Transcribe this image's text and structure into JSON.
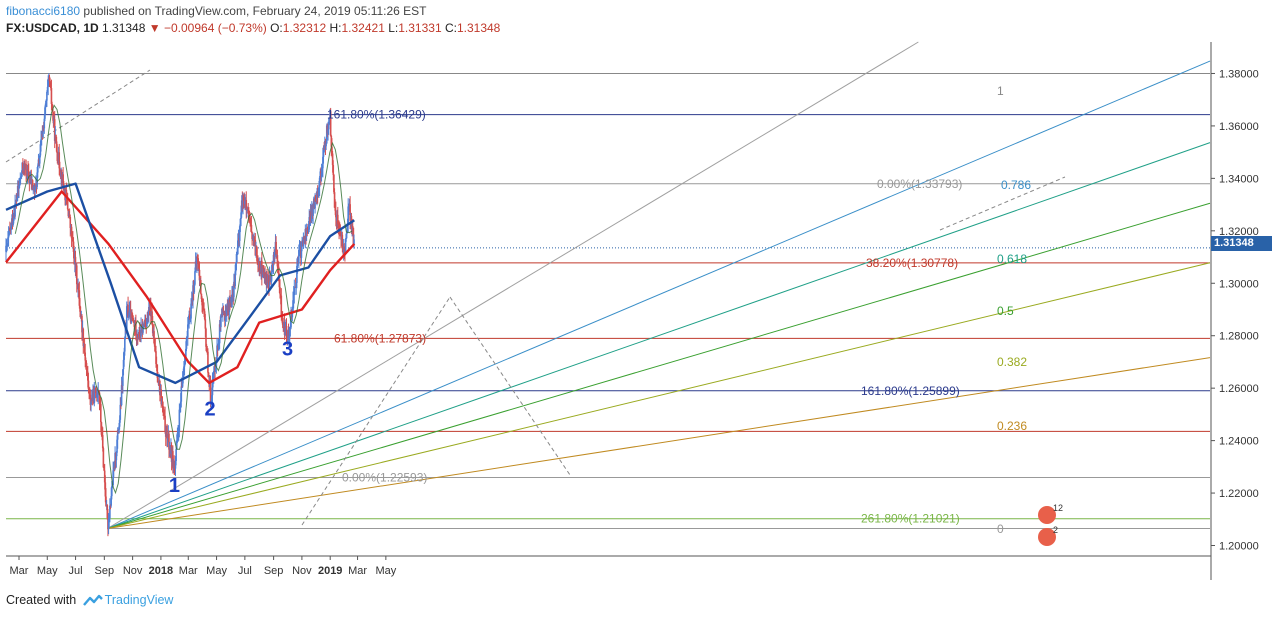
{
  "header": {
    "user": "fibonacci6180",
    "published": "published on TradingView.com, February 24, 2019 05:11:26 EST",
    "symbol": "FX:USDCAD, 1D",
    "last": "1.31348",
    "change": "−0.00964 (−0.73%)",
    "o_label": "O:",
    "o": "1.32312",
    "h_label": "H:",
    "h": "1.32421",
    "l_label": "L:",
    "l": "1.31331",
    "c_label": "C:",
    "c": "1.31348"
  },
  "footer": {
    "created_with": "Created with",
    "brand": "TradingView"
  },
  "price_tag": "1.31348",
  "colors": {
    "up": "#4f7fd6",
    "down": "#d64e4e",
    "ma200": "#e02020",
    "ma100": "#1c4fa3",
    "ma50": "#2f6e2f",
    "label_blue": "#1a3fc4",
    "price_tag_bg": "#2962a8"
  },
  "chart_data": {
    "type": "candlestick",
    "symbol": "FX:USDCAD",
    "interval": "1D",
    "y_axis": {
      "ticks": [
        1.2,
        1.22,
        1.24,
        1.26,
        1.28,
        1.3,
        1.32,
        1.34,
        1.36,
        1.38
      ],
      "range": [
        1.196,
        1.392
      ]
    },
    "x_axis": {
      "ticks": [
        "Mar",
        "May",
        "Jul",
        "Sep",
        "Nov",
        "2018",
        "Mar",
        "May",
        "Jul",
        "Sep",
        "Nov",
        "2019",
        "Mar",
        "May"
      ]
    },
    "price_path": [
      [
        "2017-02-01",
        1.312
      ],
      [
        "2017-03-10",
        1.345
      ],
      [
        "2017-04-05",
        1.335
      ],
      [
        "2017-05-05",
        1.378
      ],
      [
        "2017-05-20",
        1.352
      ],
      [
        "2017-06-15",
        1.328
      ],
      [
        "2017-07-05",
        1.3
      ],
      [
        "2017-08-01",
        1.255
      ],
      [
        "2017-08-20",
        1.26
      ],
      [
        "2017-09-08",
        1.207
      ],
      [
        "2017-10-05",
        1.25
      ],
      [
        "2017-10-20",
        1.29
      ],
      [
        "2017-11-15",
        1.28
      ],
      [
        "2017-12-10",
        1.29
      ],
      [
        "2017-12-20",
        1.272
      ],
      [
        "2018-01-10",
        1.245
      ],
      [
        "2018-01-31",
        1.229
      ],
      [
        "2018-02-20",
        1.27
      ],
      [
        "2018-03-20",
        1.31
      ],
      [
        "2018-04-05",
        1.285
      ],
      [
        "2018-04-18",
        1.256
      ],
      [
        "2018-05-10",
        1.285
      ],
      [
        "2018-06-05",
        1.295
      ],
      [
        "2018-06-27",
        1.334
      ],
      [
        "2018-07-20",
        1.315
      ],
      [
        "2018-08-10",
        1.303
      ],
      [
        "2018-08-25",
        1.3
      ],
      [
        "2018-09-05",
        1.315
      ],
      [
        "2018-09-20",
        1.285
      ],
      [
        "2018-10-02",
        1.279
      ],
      [
        "2018-10-25",
        1.31
      ],
      [
        "2018-11-20",
        1.325
      ],
      [
        "2018-12-10",
        1.34
      ],
      [
        "2018-12-31",
        1.365
      ],
      [
        "2019-01-10",
        1.33
      ],
      [
        "2019-01-31",
        1.311
      ],
      [
        "2019-02-10",
        1.33
      ],
      [
        "2019-02-22",
        1.31348
      ]
    ],
    "moving_averages": [
      {
        "name": "MA 200",
        "color": "#e02020",
        "path": [
          [
            "2017-02-01",
            1.308
          ],
          [
            "2017-06-01",
            1.335
          ],
          [
            "2017-09-10",
            1.315
          ],
          [
            "2017-12-01",
            1.295
          ],
          [
            "2018-03-01",
            1.27
          ],
          [
            "2018-04-15",
            1.262
          ],
          [
            "2018-06-15",
            1.268
          ],
          [
            "2018-08-01",
            1.285
          ],
          [
            "2018-11-01",
            1.29
          ],
          [
            "2019-01-01",
            1.305
          ],
          [
            "2019-02-22",
            1.315
          ]
        ]
      },
      {
        "name": "MA 100",
        "color": "#1c4fa3",
        "path": [
          [
            "2017-02-01",
            1.328
          ],
          [
            "2017-05-01",
            1.335
          ],
          [
            "2017-07-01",
            1.338
          ],
          [
            "2017-09-15",
            1.3
          ],
          [
            "2017-11-15",
            1.268
          ],
          [
            "2018-02-01",
            1.262
          ],
          [
            "2018-05-01",
            1.27
          ],
          [
            "2018-07-15",
            1.288
          ],
          [
            "2018-09-15",
            1.303
          ],
          [
            "2018-11-15",
            1.306
          ],
          [
            "2019-01-01",
            1.318
          ],
          [
            "2019-02-22",
            1.324
          ]
        ]
      }
    ],
    "horizontal_levels": [
      {
        "price": 1.38,
        "color": "#888888",
        "label": ""
      },
      {
        "price": 1.36429,
        "color": "#2b3a8c",
        "label": "161.80%(1.36429)"
      },
      {
        "price": 1.33793,
        "color": "#999999",
        "label": "0.00%(1.33793)"
      },
      {
        "price": 1.30778,
        "color": "#c0392b",
        "label": "38.20%(1.30778)"
      },
      {
        "price": 1.279,
        "color": "#c0392b",
        "label": "61.80%(1.27873)"
      },
      {
        "price": 1.25899,
        "color": "#2b3a8c",
        "label": "161.80%(1.25899)"
      },
      {
        "price": 1.2435,
        "color": "#c0392b",
        "label": ""
      },
      {
        "price": 1.22593,
        "color": "#999999",
        "label": "0.00%(1.22593)"
      },
      {
        "price": 1.21021,
        "color": "#7ab648",
        "label": "261.80%(1.21021)"
      },
      {
        "price": 1.2065,
        "color": "#999999",
        "label": ""
      }
    ],
    "fib_fan": {
      "origin": [
        "2017-09-08",
        1.2065
      ],
      "lines": [
        {
          "label": "1",
          "color": "#a0a0a0"
        },
        {
          "label": "0.786",
          "color": "#3a8fc8"
        },
        {
          "label": "0.618",
          "color": "#20a088"
        },
        {
          "label": "0.5",
          "color": "#3aa030"
        },
        {
          "label": "0.382",
          "color": "#9aaa20"
        },
        {
          "label": "0.236",
          "color": "#c08a20"
        },
        {
          "label": "0",
          "color": "#999999"
        }
      ]
    },
    "wave_labels": [
      {
        "text": "1",
        "date": "2018-01-31",
        "price": 1.2205
      },
      {
        "text": "2",
        "date": "2018-04-18",
        "price": 1.2495
      },
      {
        "text": "3",
        "date": "2018-10-02",
        "price": 1.2725
      }
    ],
    "event_badges": [
      "12",
      "2"
    ]
  }
}
